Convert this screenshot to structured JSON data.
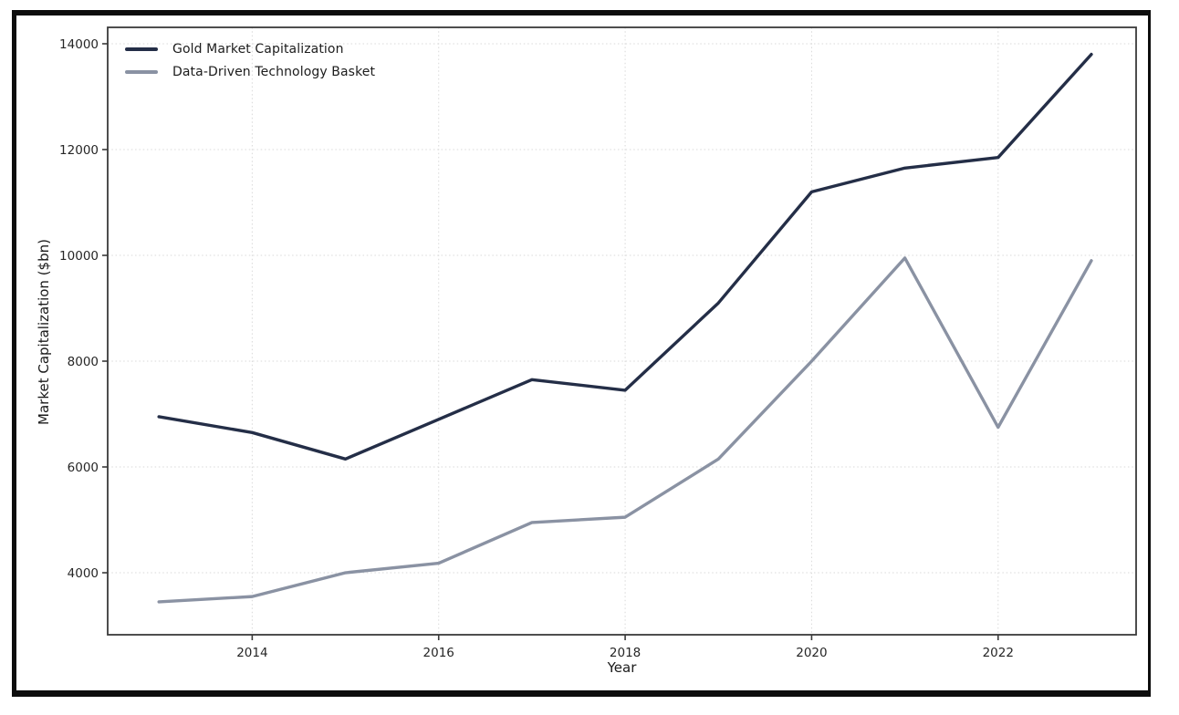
{
  "window": {
    "frame_color": "#0d0d0d",
    "background": "#ffffff"
  },
  "chart_data": {
    "type": "line",
    "title": "",
    "xlabel": "Year",
    "ylabel": "Market Capitalization ($bn)",
    "x": [
      2013,
      2014,
      2015,
      2016,
      2017,
      2018,
      2019,
      2020,
      2021,
      2022,
      2023
    ],
    "series": [
      {
        "name": "Gold Market Capitalization",
        "color": "#242e47",
        "line_width": 3.4,
        "values": [
          6950,
          6650,
          6150,
          6900,
          7650,
          7450,
          9100,
          11200,
          11650,
          11850,
          13800
        ]
      },
      {
        "name": "Data-Driven Technology Basket",
        "color": "#8a92a3",
        "line_width": 3.4,
        "values": [
          3450,
          3550,
          4000,
          4180,
          4950,
          5050,
          6150,
          8000,
          9950,
          6750,
          9900
        ]
      }
    ],
    "xticks": [
      2014,
      2016,
      2018,
      2020,
      2022
    ],
    "yticks": [
      4000,
      6000,
      8000,
      10000,
      12000,
      14000
    ],
    "xlim": [
      2012.45,
      2023.48
    ],
    "ylim": [
      2828,
      14310
    ],
    "grid": true,
    "grid_style": "dotted",
    "grid_color": "#d9d9d9",
    "axis_color": "#3a3a3a",
    "tick_label_color": "#262626",
    "tick_label_size": 13.5,
    "legend_position": "upper-left",
    "legend_frame": false
  }
}
